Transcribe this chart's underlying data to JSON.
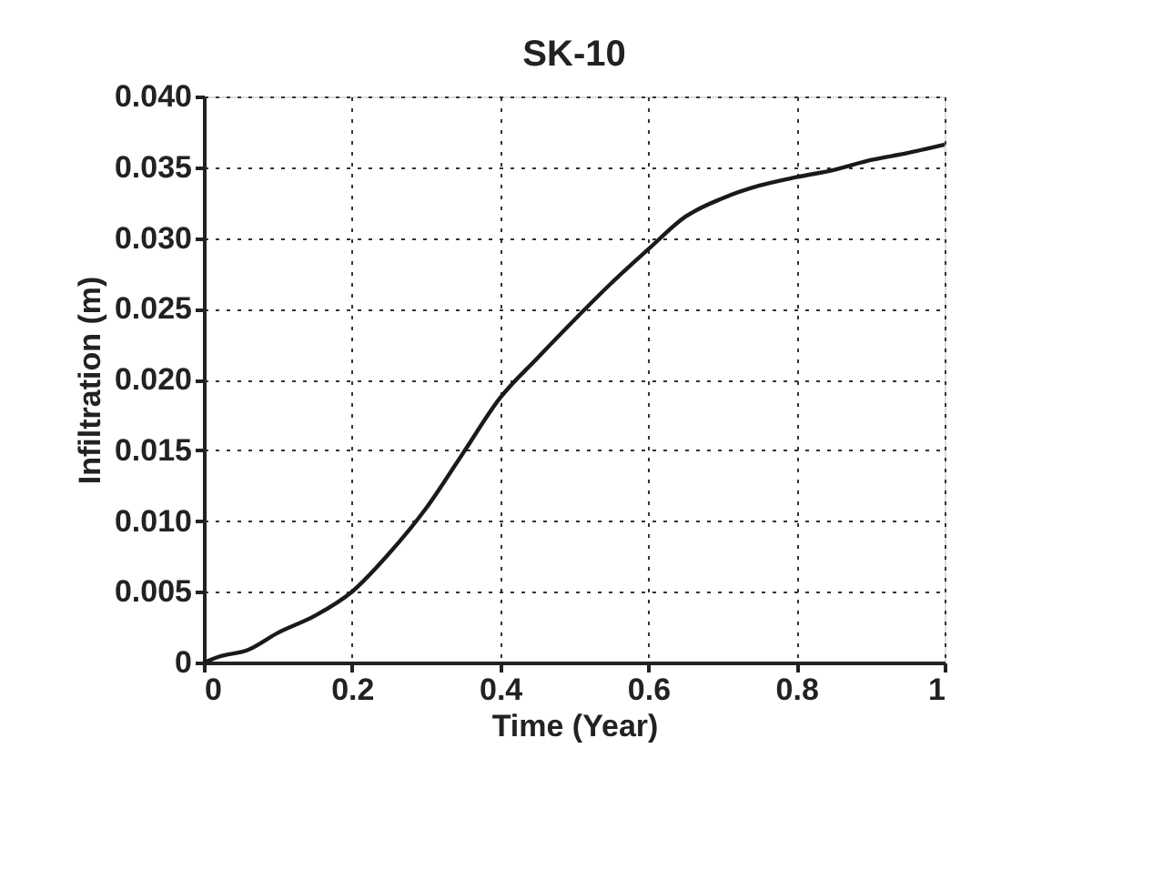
{
  "chart_data": {
    "type": "line",
    "title": "SK-10",
    "xlabel": "Time (Year)",
    "ylabel": "Infiltration (m)",
    "x": [
      0,
      0.02,
      0.06,
      0.1,
      0.15,
      0.2,
      0.25,
      0.3,
      0.35,
      0.4,
      0.45,
      0.5,
      0.55,
      0.6,
      0.65,
      0.7,
      0.75,
      0.8,
      0.85,
      0.9,
      0.95,
      1.0
    ],
    "series": [
      {
        "color": "#1a1a1a",
        "values": [
          0,
          0.0004,
          0.0009,
          0.0021,
          0.0033,
          0.005,
          0.0077,
          0.0109,
          0.0148,
          0.0187,
          0.0215,
          0.0242,
          0.0268,
          0.0292,
          0.0315,
          0.0328,
          0.0337,
          0.0343,
          0.0348,
          0.0355,
          0.036,
          0.0366
        ]
      }
    ],
    "xlim": [
      0,
      1
    ],
    "xticks": [
      0,
      0.2,
      0.4,
      0.6,
      0.8,
      1
    ],
    "ylim": [
      0,
      0.04
    ],
    "yticks": [
      0,
      {
        "value": 0.005,
        "label": "0.005"
      },
      {
        "value": 0.01,
        "label": "0.010"
      },
      {
        "value": 0.015,
        "label": "0.015"
      },
      {
        "value": 0.02,
        "label": "0.020"
      },
      {
        "value": 0.025,
        "label": "0.025"
      },
      {
        "value": 0.03,
        "label": "0.030"
      },
      {
        "value": 0.035,
        "label": "0.035"
      },
      {
        "value": 0.04,
        "label": "0.040"
      }
    ],
    "grid": true,
    "line_style": "solid",
    "marker": "none"
  }
}
